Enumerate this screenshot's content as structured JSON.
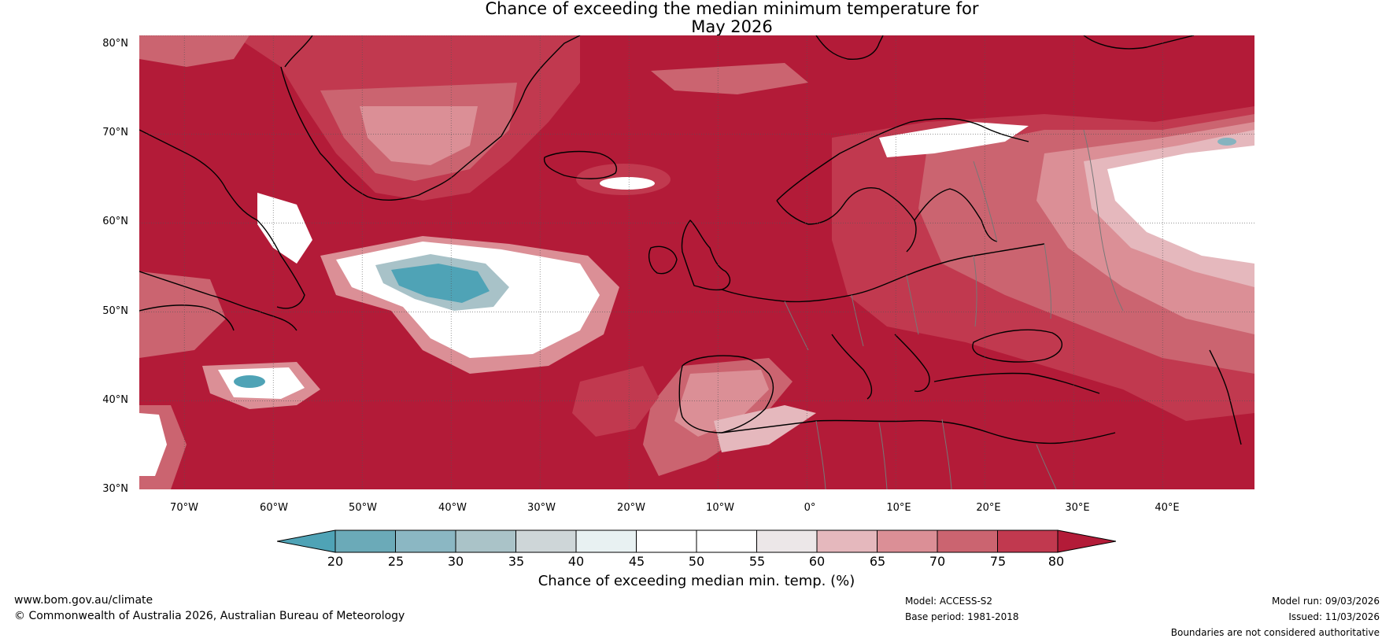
{
  "title": {
    "line1": "Chance of exceeding the median minimum temperature for",
    "line2": "May 2026"
  },
  "map": {
    "lat_labels": [
      "80°N",
      "70°N",
      "60°N",
      "50°N",
      "40°N",
      "30°N"
    ],
    "lon_labels": [
      "70°W",
      "60°W",
      "50°W",
      "40°W",
      "30°W",
      "20°W",
      "10°W",
      "0°",
      "10°E",
      "20°E",
      "30°E",
      "40°E"
    ],
    "colors": {
      "c80": "#b31b38",
      "c75": "#c1394f",
      "c70": "#cb6470",
      "c65": "#db8f96",
      "c60": "#e5b8bd",
      "c55": "#ece7e8",
      "c50": "#ffffff",
      "c40": "#e8f1f2",
      "c35": "#cdd6d8",
      "c30": "#a8c2c8",
      "c25": "#86b3bf",
      "c20": "#4fa3b6"
    }
  },
  "colorbar": {
    "ticks": [
      "20",
      "25",
      "30",
      "35",
      "40",
      "45",
      "50",
      "55",
      "60",
      "65",
      "70",
      "75",
      "80"
    ],
    "colors": [
      "#4fa3b6",
      "#6baab8",
      "#8bb7c3",
      "#aac3c8",
      "#ced6d8",
      "#e8f1f2",
      "#ffffff",
      "#ffffff",
      "#ece7e8",
      "#e5b8bd",
      "#db8f96",
      "#cb6470",
      "#c1394f",
      "#b31b38"
    ],
    "label": "Chance of exceeding median min. temp. (%)"
  },
  "footer": {
    "website": "www.bom.gov.au/climate",
    "copyright": "© Commonwealth of Australia 2026, Australian Bureau of Meteorology",
    "model": "Model: ACCESS-S2",
    "base_period": "Base period: 1981-2018",
    "model_run": "Model run: 09/03/2026",
    "issued": "Issued: 11/03/2026",
    "disclaimer": "Boundaries are not considered authoritative"
  }
}
